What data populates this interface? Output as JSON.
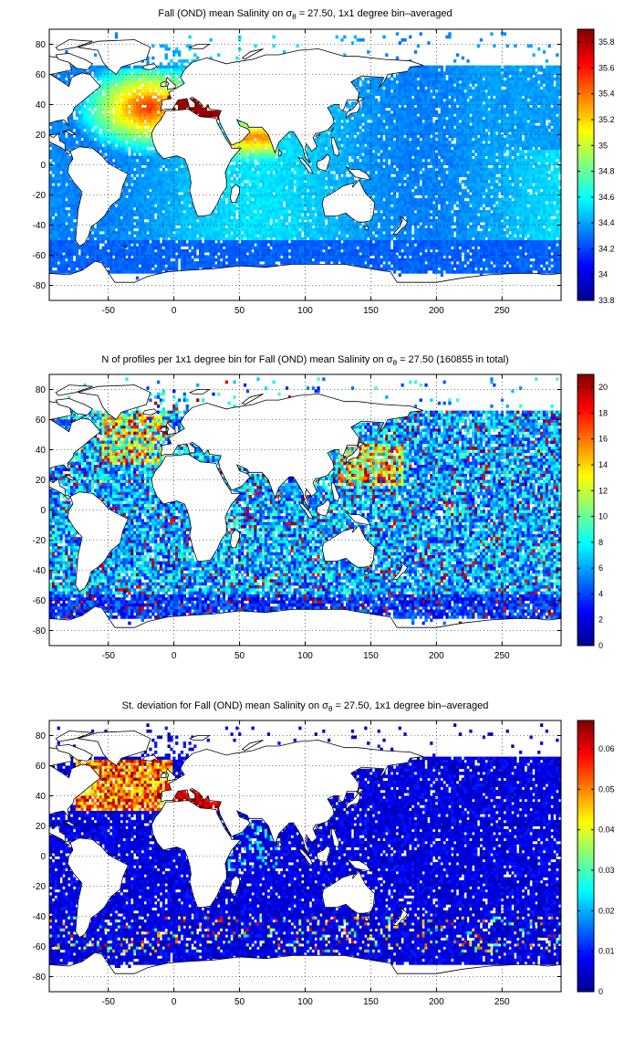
{
  "chart_data": [
    {
      "type": "heatmap",
      "title_pre": "Fall (OND) mean Salinity on ",
      "title_sigma": "σ",
      "title_sub": "θ",
      "title_post": " = 27.50, 1x1 degree bin–averaged",
      "xlim": [
        -95,
        295
      ],
      "ylim": [
        -90,
        90
      ],
      "xticks": [
        -50,
        0,
        50,
        100,
        150,
        200,
        250
      ],
      "yticks": [
        80,
        60,
        40,
        20,
        0,
        -20,
        -40,
        -60,
        -80
      ],
      "grid": true,
      "colormap": "jet",
      "clim": [
        33.8,
        35.9
      ],
      "colorbar_ticks": [
        33.8,
        34,
        34.2,
        34.4,
        34.6,
        34.8,
        35,
        35.2,
        35.4,
        35.6,
        35.8
      ],
      "colorbar_labels": [
        "33.8",
        "34",
        "34.2",
        "34.4",
        "34.6",
        "34.8",
        "35",
        "35.2",
        "35.4",
        "35.6",
        "35.8"
      ]
    },
    {
      "type": "heatmap",
      "title_pre": "N of profiles per 1x1 degree bin for Fall (OND) mean Salinity on ",
      "title_sigma": "σ",
      "title_sub": "θ",
      "title_post": " = 27.50 (160855 in total)",
      "xlim": [
        -95,
        295
      ],
      "ylim": [
        -90,
        90
      ],
      "xticks": [
        -50,
        0,
        50,
        100,
        150,
        200,
        250
      ],
      "yticks": [
        80,
        60,
        40,
        20,
        0,
        -20,
        -40,
        -60,
        -80
      ],
      "grid": true,
      "colormap": "jet",
      "clim": [
        0,
        21
      ],
      "colorbar_ticks": [
        0,
        2,
        4,
        6,
        8,
        10,
        12,
        14,
        16,
        18,
        20
      ],
      "colorbar_labels": [
        "0",
        "2",
        "4",
        "6",
        "8",
        "10",
        "12",
        "14",
        "16",
        "18",
        "20"
      ]
    },
    {
      "type": "heatmap",
      "title_pre": "St. deviation for Fall (OND) mean Salinity on ",
      "title_sigma": "σ",
      "title_sub": "θ",
      "title_post": " = 27.50, 1x1 degree bin–averaged",
      "xlim": [
        -95,
        295
      ],
      "ylim": [
        -90,
        90
      ],
      "xticks": [
        -50,
        0,
        50,
        100,
        150,
        200,
        250
      ],
      "yticks": [
        80,
        60,
        40,
        20,
        0,
        -20,
        -40,
        -60,
        -80
      ],
      "grid": true,
      "colormap": "jet",
      "clim": [
        0,
        0.067
      ],
      "colorbar_ticks": [
        0,
        0.01,
        0.02,
        0.03,
        0.04,
        0.05,
        0.06
      ],
      "colorbar_labels": [
        "0",
        "0.01",
        "0.02",
        "0.03",
        "0.04",
        "0.05",
        "0.06"
      ]
    }
  ]
}
